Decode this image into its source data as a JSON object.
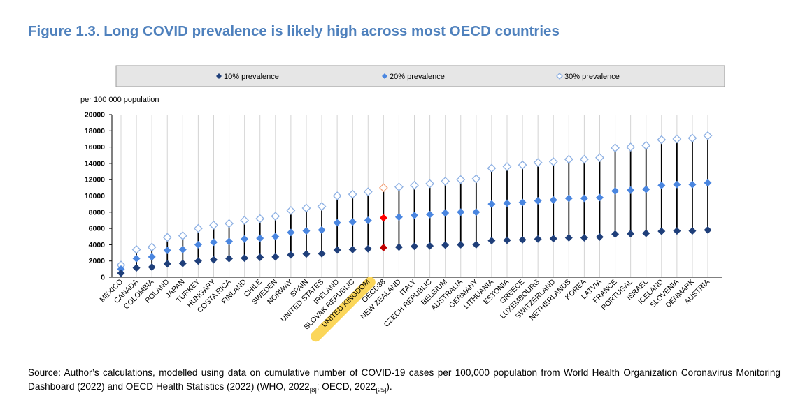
{
  "figure": {
    "title": "Figure 1.3. Long COVID prevalence is likely high across most OECD countries",
    "source_text": "Source: Author’s calculations, modelled using data on cumulative number of COVID-19 cases per 100,000 population from World Health Organization Coronavirus Monitoring Dashboard (2022) and OECD Health Statistics (2022)  (WHO, 2022",
    "ref1": "[8]",
    "source_mid": "; OECD, 2022",
    "ref2": "[25]",
    "source_end": ")."
  },
  "colors": {
    "s10": "#1f3f7a",
    "s20": "#4a86e0",
    "s30_fill": "#ffffff",
    "s30_stroke": "#8db0e3",
    "oecd10": "#c00000",
    "oecd20": "#ff0000",
    "oecd30": "#f2a27a",
    "highlight": "#fbd65a",
    "legend_bg": "#e6e6e6"
  },
  "chart_data": {
    "type": "scatter",
    "ylabel": "per 100 000 population",
    "ylim": [
      0,
      20000
    ],
    "yticks": [
      0,
      2000,
      4000,
      6000,
      8000,
      10000,
      12000,
      14000,
      16000,
      18000,
      20000
    ],
    "grid": "vertical lines at each category",
    "legend_position": "top",
    "highlighted_category": "UNITED KINGDOM",
    "categories": [
      "MEXICO",
      "CANADA",
      "COLOMBIA",
      "POLAND",
      "JAPAN",
      "TURKEY",
      "HUNGARY",
      "COSTA RICA",
      "FINLAND",
      "CHILE",
      "SWEDEN",
      "NORWAY",
      "SPAIN",
      "UNITED STATES",
      "IRELAND",
      "SLOVAK REPUBLIC",
      "UNITED KINGDOM",
      "OECD38",
      "NEW ZEALAND",
      "ITALY",
      "CZECH REPUBLIC",
      "BELGIUM",
      "AUSTRALIA",
      "GERMANY",
      "LITHUANIA",
      "ESTONIA",
      "GREECE",
      "LUXEMBOURG",
      "SWITZERLAND",
      "NETHERLANDS",
      "KOREA",
      "LATVIA",
      "FRANCE",
      "PORTUGAL",
      "ISRAEL",
      "ICELAND",
      "SLOVENIA",
      "DENMARK",
      "AUSTRIA"
    ],
    "series": [
      {
        "name": "10% prevalence",
        "values": [
          500,
          1150,
          1250,
          1650,
          1700,
          2000,
          2150,
          2300,
          2350,
          2450,
          2500,
          2750,
          2850,
          2900,
          3350,
          3400,
          3500,
          3650,
          3700,
          3800,
          3850,
          3950,
          4000,
          4000,
          4500,
          4550,
          4600,
          4700,
          4750,
          4850,
          4850,
          4950,
          5300,
          5350,
          5400,
          5650,
          5700,
          5700,
          5800
        ]
      },
      {
        "name": "20% prevalence",
        "values": [
          1000,
          2300,
          2500,
          3300,
          3400,
          4000,
          4300,
          4400,
          4700,
          4800,
          5000,
          5500,
          5700,
          5800,
          6700,
          6800,
          7000,
          7300,
          7400,
          7600,
          7700,
          7900,
          8000,
          8000,
          9000,
          9100,
          9200,
          9400,
          9500,
          9700,
          9700,
          9800,
          10600,
          10700,
          10800,
          11300,
          11400,
          11400,
          11600
        ]
      },
      {
        "name": "30% prevalence",
        "values": [
          1500,
          3400,
          3700,
          4900,
          5100,
          6000,
          6400,
          6600,
          7000,
          7200,
          7500,
          8200,
          8500,
          8700,
          10000,
          10200,
          10500,
          11000,
          11100,
          11300,
          11500,
          11800,
          12000,
          12100,
          13400,
          13600,
          13800,
          14100,
          14200,
          14500,
          14500,
          14700,
          15900,
          16000,
          16200,
          16900,
          17000,
          17100,
          17400
        ]
      }
    ]
  }
}
